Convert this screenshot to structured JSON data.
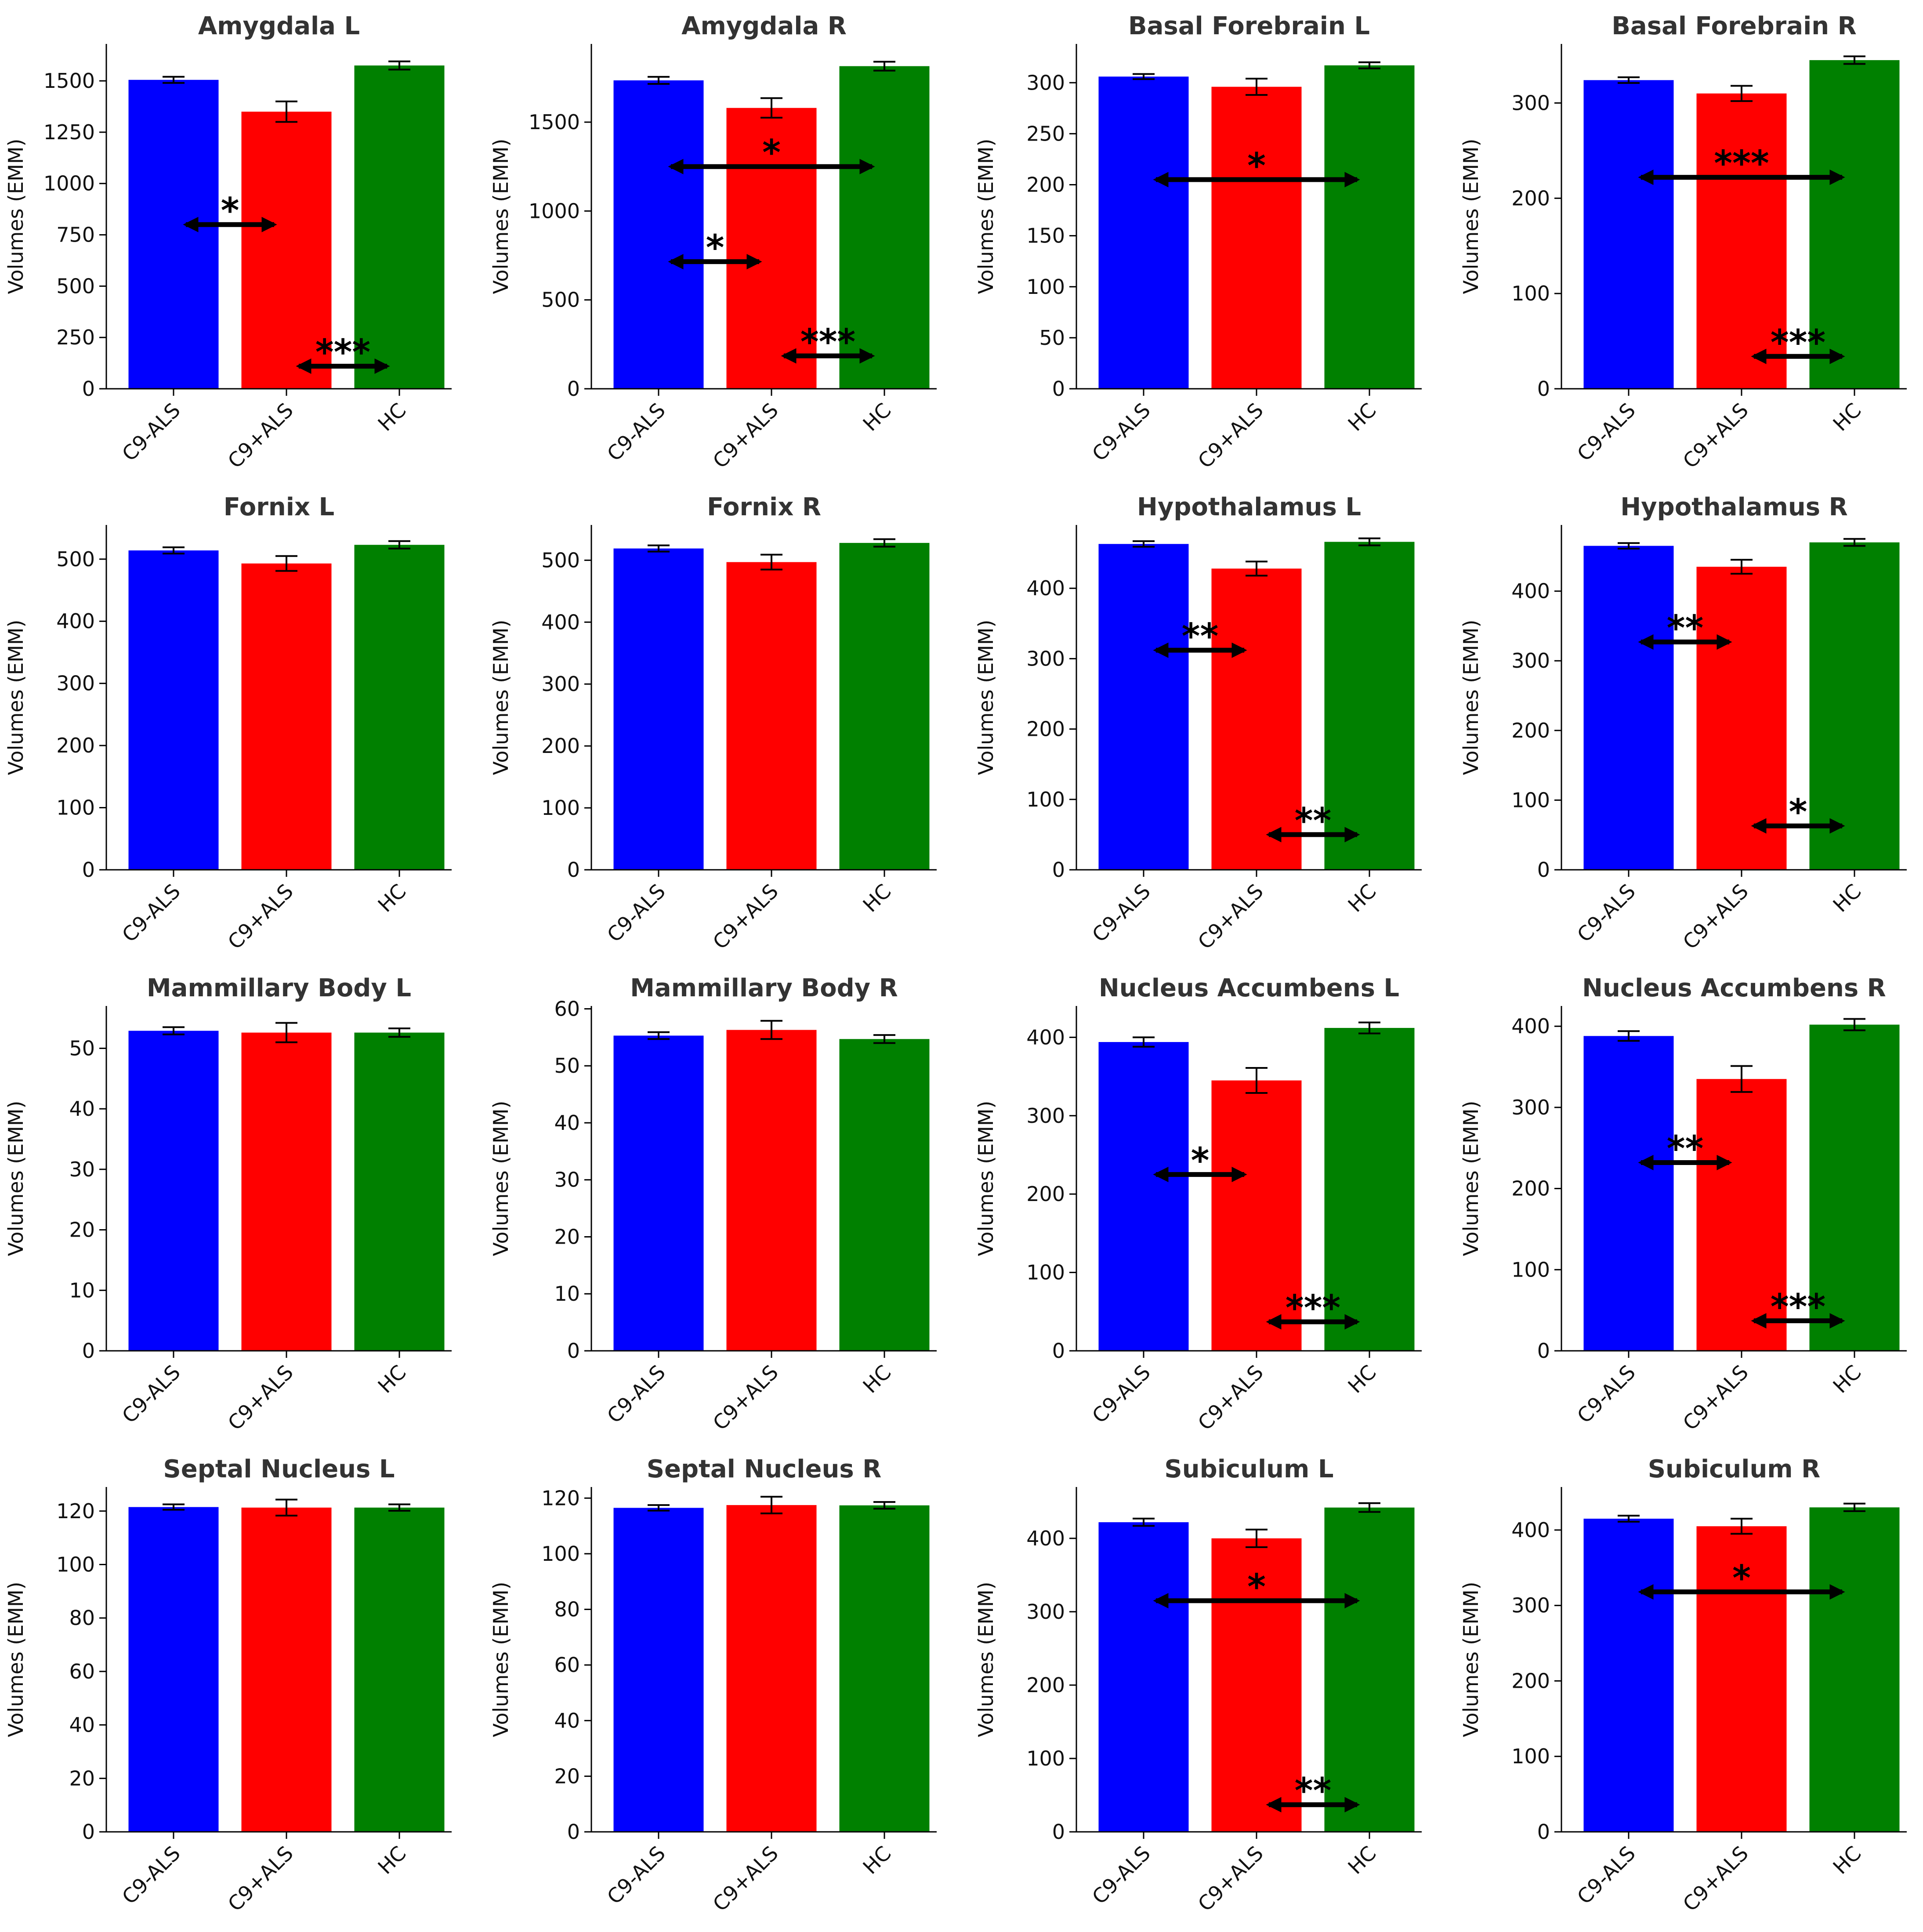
{
  "groups": [
    "C9-ALS",
    "C9+ALS",
    "HC"
  ],
  "colors": [
    "#0000ff",
    "#ff0000",
    "#008000"
  ],
  "ylabel": "Volumes (EMM)",
  "chart_data": [
    {
      "type": "bar",
      "title": "Amygdala L",
      "ylim": [
        0,
        1680
      ],
      "yticks": [
        0,
        250,
        500,
        750,
        1000,
        1250,
        1500
      ],
      "values": [
        1505,
        1350,
        1575
      ],
      "errors": [
        15,
        50,
        20
      ],
      "annotations": [
        {
          "from": 0,
          "to": 1,
          "y": 800,
          "label": "*"
        },
        {
          "from": 1,
          "to": 2,
          "y": 110,
          "label": "***"
        }
      ]
    },
    {
      "type": "bar",
      "title": "Amygdala R",
      "ylim": [
        0,
        1940
      ],
      "yticks": [
        0,
        500,
        1000,
        1500
      ],
      "values": [
        1735,
        1580,
        1815
      ],
      "errors": [
        20,
        55,
        25
      ],
      "annotations": [
        {
          "from": 0,
          "to": 2,
          "y": 1250,
          "label": "*"
        },
        {
          "from": 0,
          "to": 1,
          "y": 715,
          "label": "*"
        },
        {
          "from": 1,
          "to": 2,
          "y": 185,
          "label": "***"
        }
      ]
    },
    {
      "type": "bar",
      "title": "Basal Forebrain L",
      "ylim": [
        0,
        338
      ],
      "yticks": [
        0,
        50,
        100,
        150,
        200,
        250,
        300
      ],
      "values": [
        306,
        296,
        317
      ],
      "errors": [
        2.5,
        8,
        3
      ],
      "annotations": [
        {
          "from": 0,
          "to": 2,
          "y": 205,
          "label": "*"
        }
      ]
    },
    {
      "type": "bar",
      "title": "Basal Forebrain R",
      "ylim": [
        0,
        362
      ],
      "yticks": [
        0,
        100,
        200,
        300
      ],
      "values": [
        324,
        310,
        345
      ],
      "errors": [
        3,
        8,
        4
      ],
      "annotations": [
        {
          "from": 0,
          "to": 2,
          "y": 222,
          "label": "***"
        },
        {
          "from": 1,
          "to": 2,
          "y": 34,
          "label": "***"
        }
      ]
    },
    {
      "type": "bar",
      "title": "Fornix L",
      "ylim": [
        0,
        555
      ],
      "yticks": [
        0,
        100,
        200,
        300,
        400,
        500
      ],
      "values": [
        514,
        493,
        523
      ],
      "errors": [
        5,
        12,
        6
      ],
      "annotations": []
    },
    {
      "type": "bar",
      "title": "Fornix R",
      "ylim": [
        0,
        557
      ],
      "yticks": [
        0,
        100,
        200,
        300,
        400,
        500
      ],
      "values": [
        519,
        497,
        528
      ],
      "errors": [
        5,
        12,
        6
      ],
      "annotations": []
    },
    {
      "type": "bar",
      "title": "Hypothalamus L",
      "ylim": [
        0,
        490
      ],
      "yticks": [
        0,
        100,
        200,
        300,
        400
      ],
      "values": [
        463,
        428,
        466
      ],
      "errors": [
        4,
        10,
        5
      ],
      "annotations": [
        {
          "from": 0,
          "to": 1,
          "y": 312,
          "label": "**"
        },
        {
          "from": 1,
          "to": 2,
          "y": 50,
          "label": "**"
        }
      ]
    },
    {
      "type": "bar",
      "title": "Hypothalamus R",
      "ylim": [
        0,
        495
      ],
      "yticks": [
        0,
        100,
        200,
        300,
        400
      ],
      "values": [
        465,
        435,
        470
      ],
      "errors": [
        4,
        10,
        5
      ],
      "annotations": [
        {
          "from": 0,
          "to": 1,
          "y": 327,
          "label": "**"
        },
        {
          "from": 1,
          "to": 2,
          "y": 63,
          "label": "*"
        }
      ]
    },
    {
      "type": "bar",
      "title": "Mammillary Body L",
      "ylim": [
        0,
        57
      ],
      "yticks": [
        0,
        10,
        20,
        30,
        40,
        50
      ],
      "values": [
        52.9,
        52.6,
        52.6
      ],
      "errors": [
        0.6,
        1.6,
        0.7
      ],
      "annotations": []
    },
    {
      "type": "bar",
      "title": "Mammillary Body R",
      "ylim": [
        0,
        60.5
      ],
      "yticks": [
        0,
        10,
        20,
        30,
        40,
        50,
        60
      ],
      "values": [
        55.3,
        56.3,
        54.7
      ],
      "errors": [
        0.6,
        1.6,
        0.7
      ],
      "annotations": []
    },
    {
      "type": "bar",
      "title": "Nucleus Accumbens L",
      "ylim": [
        0,
        440
      ],
      "yticks": [
        0,
        100,
        200,
        300,
        400
      ],
      "values": [
        394,
        345,
        412
      ],
      "errors": [
        6,
        16,
        7
      ],
      "annotations": [
        {
          "from": 0,
          "to": 1,
          "y": 225,
          "label": "*"
        },
        {
          "from": 1,
          "to": 2,
          "y": 37,
          "label": "***"
        }
      ]
    },
    {
      "type": "bar",
      "title": "Nucleus Accumbens R",
      "ylim": [
        0,
        425
      ],
      "yticks": [
        0,
        100,
        200,
        300,
        400
      ],
      "values": [
        388,
        335,
        402
      ],
      "errors": [
        6,
        16,
        7
      ],
      "annotations": [
        {
          "from": 0,
          "to": 1,
          "y": 232,
          "label": "**"
        },
        {
          "from": 1,
          "to": 2,
          "y": 37,
          "label": "***"
        }
      ]
    },
    {
      "type": "bar",
      "title": "Septal Nucleus L",
      "ylim": [
        0,
        129
      ],
      "yticks": [
        0,
        20,
        40,
        60,
        80,
        100,
        120
      ],
      "values": [
        121.5,
        121.3,
        121.3
      ],
      "errors": [
        1.0,
        3.0,
        1.2
      ],
      "annotations": []
    },
    {
      "type": "bar",
      "title": "Septal Nucleus R",
      "ylim": [
        0,
        124
      ],
      "yticks": [
        0,
        20,
        40,
        60,
        80,
        100,
        120
      ],
      "values": [
        116.5,
        117.5,
        117.4
      ],
      "errors": [
        1.0,
        3.0,
        1.2
      ],
      "annotations": []
    },
    {
      "type": "bar",
      "title": "Subiculum L",
      "ylim": [
        0,
        470
      ],
      "yticks": [
        0,
        100,
        200,
        300,
        400
      ],
      "values": [
        422,
        400,
        442
      ],
      "errors": [
        5,
        12,
        6
      ],
      "annotations": [
        {
          "from": 0,
          "to": 2,
          "y": 315,
          "label": "*"
        },
        {
          "from": 1,
          "to": 2,
          "y": 37,
          "label": "**"
        }
      ]
    },
    {
      "type": "bar",
      "title": "Subiculum R",
      "ylim": [
        0,
        457
      ],
      "yticks": [
        0,
        100,
        200,
        300,
        400
      ],
      "values": [
        415,
        405,
        430
      ],
      "errors": [
        4,
        10,
        5
      ],
      "annotations": [
        {
          "from": 0,
          "to": 2,
          "y": 318,
          "label": "*"
        }
      ]
    }
  ]
}
